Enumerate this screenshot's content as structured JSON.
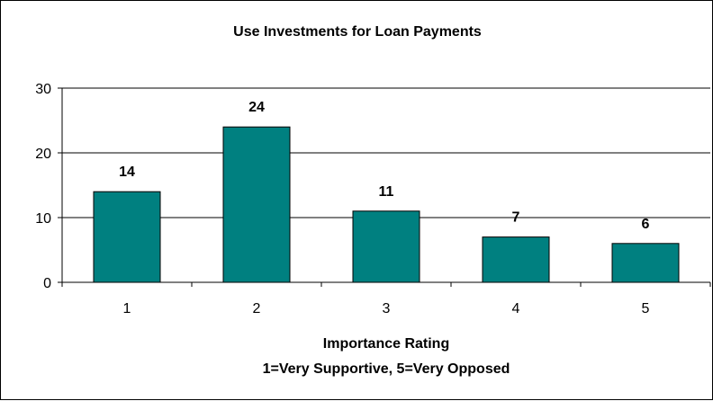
{
  "chart_data": {
    "type": "bar",
    "title": "Use Investments for Loan Payments",
    "categories": [
      "1",
      "2",
      "3",
      "4",
      "5"
    ],
    "values": [
      14,
      24,
      11,
      7,
      6
    ],
    "data_labels": [
      "14",
      "24",
      "11",
      "7",
      "6"
    ],
    "xlabel_line1": "Importance Rating",
    "xlabel_line2": "1=Very Supportive, 5=Very Opposed",
    "ylabel": "",
    "ylim": [
      0,
      30
    ],
    "yticks": [
      "0",
      "10",
      "20",
      "30"
    ],
    "grid": true,
    "legend": "none",
    "bar_color": "#008080"
  }
}
